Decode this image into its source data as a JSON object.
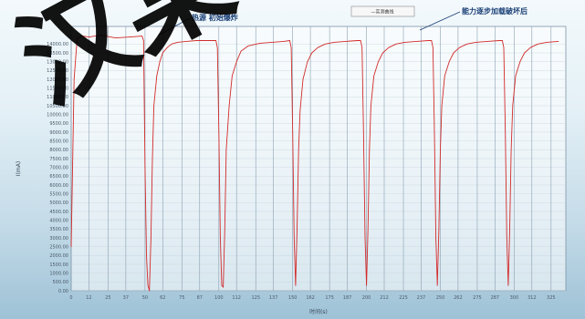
{
  "chart_data": {
    "type": "line",
    "title": "",
    "xlabel": "时间(s)",
    "ylabel": "I(mA)",
    "ylim": [
      0,
      15000
    ],
    "xlim": [
      0,
      335
    ],
    "x_ticks": [
      0,
      12,
      25,
      37,
      50,
      62,
      75,
      87,
      100,
      112,
      125,
      137,
      150,
      162,
      175,
      187,
      200,
      212,
      225,
      237,
      250,
      262,
      275,
      287,
      300,
      312,
      325
    ],
    "y_ticks": [
      0,
      500,
      1000,
      1500,
      2000,
      2500,
      3000,
      3500,
      4000,
      4500,
      5000,
      5500,
      6000,
      6500,
      7000,
      7500,
      8000,
      8500,
      9000,
      9500,
      10000,
      10500,
      11000,
      11500,
      12000,
      12500,
      13000,
      13500,
      14000
    ],
    "legend": {
      "position": "top-right",
      "entries": [
        "—实测曲线"
      ]
    },
    "annotations": [
      {
        "text": "热源 初始爆炸",
        "x": 52,
        "y": 14200
      },
      {
        "text": "能力逐步加载破坏后",
        "x": 223,
        "y": 14200
      }
    ],
    "series": [
      {
        "name": "实测曲线",
        "color": "#d22b2b",
        "x": [
          0,
          2,
          4,
          6,
          8,
          12,
          20,
          30,
          40,
          48,
          49,
          50,
          51,
          52,
          53,
          54,
          55,
          56,
          58,
          60,
          62,
          65,
          68,
          72,
          78,
          85,
          92,
          98,
          99,
          100,
          101,
          102,
          103,
          104,
          105,
          107,
          109,
          112,
          115,
          120,
          128,
          136,
          144,
          148,
          149,
          150,
          151,
          152,
          153,
          154,
          155,
          157,
          160,
          163,
          167,
          172,
          178,
          186,
          194,
          196,
          197,
          198,
          199,
          200,
          201,
          202,
          203,
          205,
          208,
          211,
          215,
          220,
          226,
          234,
          242,
          244,
          245,
          246,
          247,
          248,
          249,
          250,
          251,
          253,
          256,
          259,
          263,
          268,
          274,
          282,
          290,
          292,
          293,
          294,
          295,
          296,
          297,
          298,
          299,
          301,
          304,
          307,
          311,
          316,
          322,
          330
        ],
        "y": [
          2500,
          12000,
          14300,
          14400,
          14450,
          14400,
          14500,
          14350,
          14400,
          14450,
          14200,
          7000,
          2000,
          300,
          0,
          3000,
          7500,
          10500,
          12200,
          13000,
          13500,
          13800,
          14000,
          14100,
          14150,
          14200,
          14200,
          14200,
          13800,
          9000,
          3000,
          300,
          200,
          3500,
          8000,
          10500,
          12200,
          13000,
          13600,
          13900,
          14050,
          14100,
          14150,
          14200,
          13800,
          9000,
          3000,
          300,
          3500,
          8000,
          10200,
          12000,
          13000,
          13500,
          13800,
          14000,
          14100,
          14150,
          14200,
          14200,
          13800,
          9000,
          3000,
          300,
          3500,
          8000,
          10500,
          12200,
          13000,
          13500,
          13800,
          14000,
          14100,
          14150,
          14200,
          14200,
          13800,
          9000,
          3000,
          300,
          3500,
          8000,
          10500,
          12200,
          13000,
          13500,
          13800,
          14000,
          14100,
          14150,
          14200,
          14200,
          13800,
          9000,
          3000,
          300,
          3500,
          8000,
          10500,
          12200,
          13000,
          13500,
          13800,
          14000,
          14100,
          14150
        ]
      }
    ],
    "grid": true
  },
  "watermark": {
    "text": "汉某",
    "color": "#000000"
  }
}
